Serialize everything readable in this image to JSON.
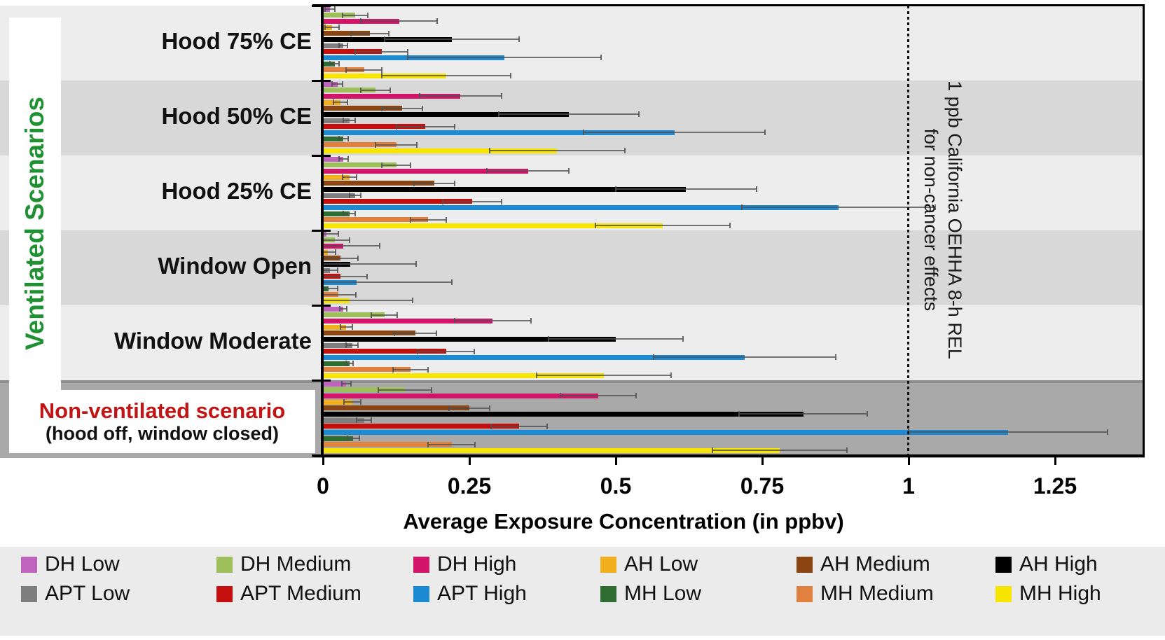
{
  "side_label": "Ventilated Scenarios",
  "axis": {
    "xlabel": "Average Exposure Concentration (in ppbv)",
    "tick_labels": [
      "0",
      "0.25",
      "0.5",
      "0.75",
      "1",
      "1.25"
    ],
    "tick_values": [
      0,
      0.25,
      0.5,
      0.75,
      1,
      1.25
    ],
    "xmax": 1.4
  },
  "ref_line": {
    "value": 1,
    "label_line1": "1 ppb California OEHHA 8-h REL",
    "label_line2": "for non-cancer effects"
  },
  "nonventilated": {
    "title": "Non-ventilated scenario",
    "subtitle": "(hood off, window closed)"
  },
  "chart_data": {
    "type": "bar",
    "orientation": "horizontal",
    "xlabel": "Average Exposure Concentration (in ppbv)",
    "xlim": [
      0,
      1.4
    ],
    "grid": false,
    "legend_position": "bottom",
    "categories": [
      "Hood 75% CE",
      "Hood 50% CE",
      "Hood 25% CE",
      "Window Open",
      "Window Moderate",
      "Non-ventilated scenario"
    ],
    "series": [
      {
        "name": "DH Low",
        "color": "#bf63bd",
        "values": [
          0.012,
          0.025,
          0.035,
          0.006,
          0.035,
          0.04
        ],
        "errors": [
          0.008,
          0.009,
          0.008,
          0.02,
          0.006,
          0.008
        ]
      },
      {
        "name": "DH Medium",
        "color": "#9dc05a",
        "values": [
          0.055,
          0.09,
          0.125,
          0.02,
          0.105,
          0.14
        ],
        "errors": [
          0.022,
          0.025,
          0.025,
          0.025,
          0.022,
          0.045
        ]
      },
      {
        "name": "DH High",
        "color": "#d3156a",
        "values": [
          0.13,
          0.235,
          0.35,
          0.035,
          0.29,
          0.47
        ],
        "errors": [
          0.065,
          0.07,
          0.07,
          0.062,
          0.065,
          0.065
        ]
      },
      {
        "name": "AH Low",
        "color": "#f2b01e",
        "values": [
          0.015,
          0.03,
          0.045,
          0.008,
          0.04,
          0.05
        ],
        "errors": [
          0.012,
          0.012,
          0.012,
          0.014,
          0.01,
          0.014
        ]
      },
      {
        "name": "AH Medium",
        "color": "#8a4512",
        "values": [
          0.08,
          0.135,
          0.19,
          0.03,
          0.158,
          0.25
        ],
        "errors": [
          0.032,
          0.035,
          0.035,
          0.03,
          0.036,
          0.035
        ]
      },
      {
        "name": "AH High",
        "color": "#000000",
        "values": [
          0.22,
          0.42,
          0.62,
          0.047,
          0.5,
          0.82
        ],
        "errors": [
          0.115,
          0.12,
          0.12,
          0.112,
          0.115,
          0.11
        ]
      },
      {
        "name": "APT Low",
        "color": "#7f7f7f",
        "values": [
          0.035,
          0.045,
          0.055,
          0.012,
          0.05,
          0.07
        ],
        "errors": [
          0.007,
          0.01,
          0.01,
          0.013,
          0.01,
          0.013
        ]
      },
      {
        "name": "APT Medium",
        "color": "#c40f0f",
        "values": [
          0.1,
          0.175,
          0.255,
          0.03,
          0.21,
          0.335
        ],
        "errors": [
          0.045,
          0.05,
          0.05,
          0.045,
          0.048,
          0.048
        ]
      },
      {
        "name": "APT High",
        "color": "#1d8ad4",
        "values": [
          0.31,
          0.6,
          0.88,
          0.058,
          0.72,
          1.17
        ],
        "errors": [
          0.165,
          0.155,
          0.165,
          0.162,
          0.155,
          0.17
        ]
      },
      {
        "name": "MH Low",
        "color": "#2f6d33",
        "values": [
          0.02,
          0.035,
          0.045,
          0.01,
          0.045,
          0.052
        ],
        "errors": [
          0.008,
          0.008,
          0.01,
          0.015,
          0.006,
          0.01
        ]
      },
      {
        "name": "MH Medium",
        "color": "#e0813f",
        "values": [
          0.07,
          0.125,
          0.18,
          0.026,
          0.15,
          0.22
        ],
        "errors": [
          0.03,
          0.035,
          0.03,
          0.03,
          0.03,
          0.04
        ]
      },
      {
        "name": "MH High",
        "color": "#f7e400",
        "values": [
          0.21,
          0.4,
          0.58,
          0.046,
          0.48,
          0.78
        ],
        "errors": [
          0.11,
          0.115,
          0.115,
          0.107,
          0.115,
          0.115
        ]
      }
    ]
  }
}
